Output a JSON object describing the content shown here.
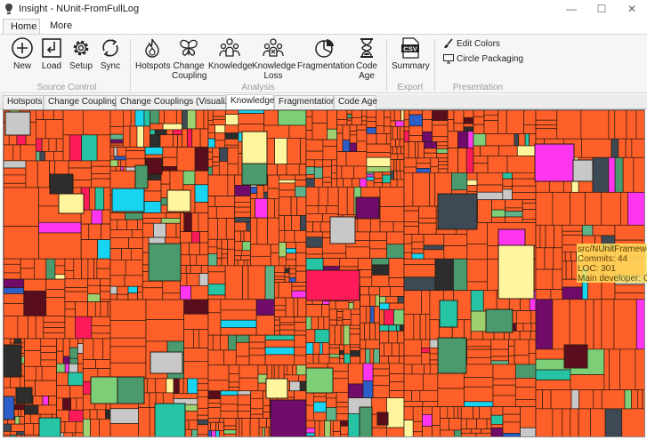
{
  "window": {
    "title": "Insight - NUnit-FromFullLog",
    "minimize_label": "—",
    "maximize_label": "☐",
    "close_label": "✕"
  },
  "ribbon_tabs": [
    "Home",
    "More"
  ],
  "ribbon": {
    "source_control": {
      "label": "Source Control",
      "buttons": [
        {
          "label": "New",
          "icon": "plus-circle-icon"
        },
        {
          "label": "Load",
          "icon": "load-icon"
        },
        {
          "label": "Setup",
          "icon": "gear-icon"
        },
        {
          "label": "Sync",
          "icon": "sync-icon"
        }
      ]
    },
    "analysis": {
      "label": "Analysis",
      "buttons": [
        {
          "label": "Hotspots",
          "icon": "flame-icon"
        },
        {
          "label": "Change\nCoupling",
          "line1": "Change",
          "line2": "Coupling",
          "icon": "butterfly-icon"
        },
        {
          "label": "Knowledge",
          "icon": "people-icon"
        },
        {
          "label": "Knowledge\nLoss",
          "line1": "Knowledge",
          "line2": "Loss",
          "icon": "people-loss-icon"
        },
        {
          "label": "Fragmentation",
          "icon": "pie-icon"
        },
        {
          "label": "Code\nAge",
          "line1": "Code",
          "line2": "Age",
          "icon": "hourglass-icon"
        }
      ]
    },
    "export": {
      "label": "Export",
      "buttons": [
        {
          "label": "Summary",
          "icon": "csv-icon",
          "badge": "CSV"
        }
      ]
    },
    "presentation": {
      "label": "Presentation",
      "buttons": [
        {
          "label": "Edit Colors",
          "icon": "brush-icon"
        },
        {
          "label": "Circle Packaging",
          "icon": "monitor-icon"
        }
      ]
    }
  },
  "doc_tabs": [
    "Hotspots",
    "Change Couplings",
    "Change Couplings (Visualize)",
    "Knowledge",
    "Fragmentation",
    "Code Age"
  ],
  "active_doc_tab": "Knowledge",
  "tooltip": {
    "path": "src/NUnitFramewor",
    "commits": "Commits: 44",
    "loc": "LOC: 301",
    "developer": "Main developer: Ch"
  },
  "colors": {
    "background_developer": "#ff5f28",
    "developers": [
      "#ff5f28",
      "#ff6a33",
      "#fff59d",
      "#4a9a6e",
      "#c8c8c8",
      "#2d2d2d",
      "#5a0e1d",
      "#700b6a",
      "#ff1a5a",
      "#17d4f0",
      "#25c4a5",
      "#7dcf77",
      "#ff35ef",
      "#3d4a55",
      "#2b5ec9",
      "#5fb38a",
      "#a0d070"
    ]
  }
}
